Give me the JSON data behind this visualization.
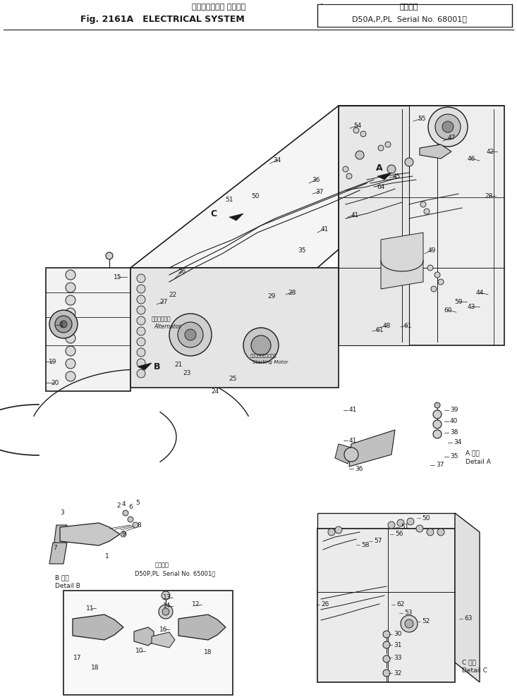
{
  "title_line1_jp": "エレクトリカル システム",
  "title_line1_en": "Fig. 2161A   ELECTRICAL SYSTEM",
  "title_right1_jp": "適用号機",
  "title_right2": "D50A,P,PL  Serial No. 68001～",
  "bg_color": "#ffffff",
  "lc": "#1a1a1a",
  "tc": "#1a1a1a",
  "fig_width": 7.33,
  "fig_height": 9.89,
  "dpi": 100
}
